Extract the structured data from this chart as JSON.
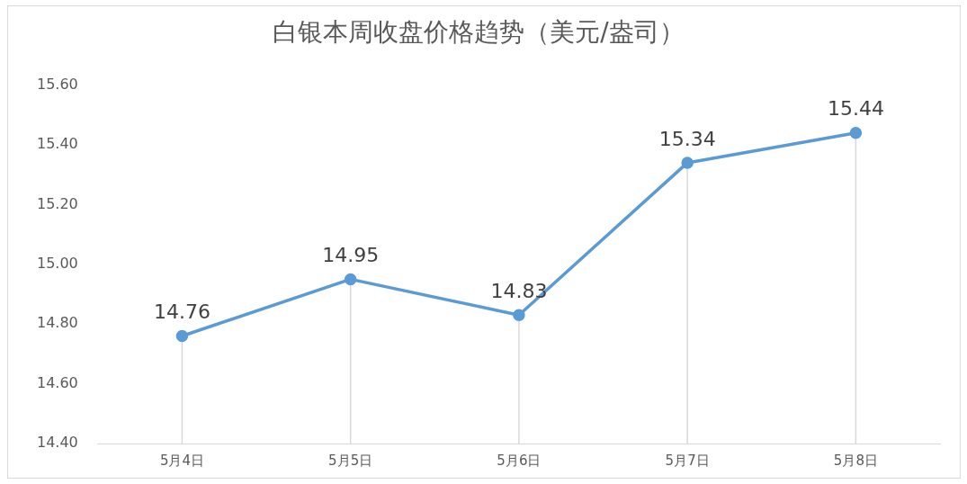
{
  "chart_data": {
    "type": "line",
    "title": "白银本周收盘价格趋势（美元/盎司）",
    "categories": [
      "5月4日",
      "5月5日",
      "5月6日",
      "5月7日",
      "5月8日"
    ],
    "series": [
      {
        "color": "#5b9bd5",
        "values": [
          14.76,
          14.95,
          14.83,
          15.34,
          15.44
        ]
      }
    ],
    "ylim": [
      14.4,
      15.6
    ],
    "yticks": [
      {
        "value": 14.4,
        "label": "14.40"
      },
      {
        "value": 14.6,
        "label": "14.60"
      },
      {
        "value": 14.8,
        "label": "14.80"
      },
      {
        "value": 15.0,
        "label": "15.00"
      },
      {
        "value": 15.2,
        "label": "15.20"
      },
      {
        "value": 15.4,
        "label": "15.40"
      },
      {
        "value": 15.6,
        "label": "15.60"
      }
    ],
    "data_labels": true,
    "marker": "circle",
    "grid": "x",
    "legend": false
  }
}
